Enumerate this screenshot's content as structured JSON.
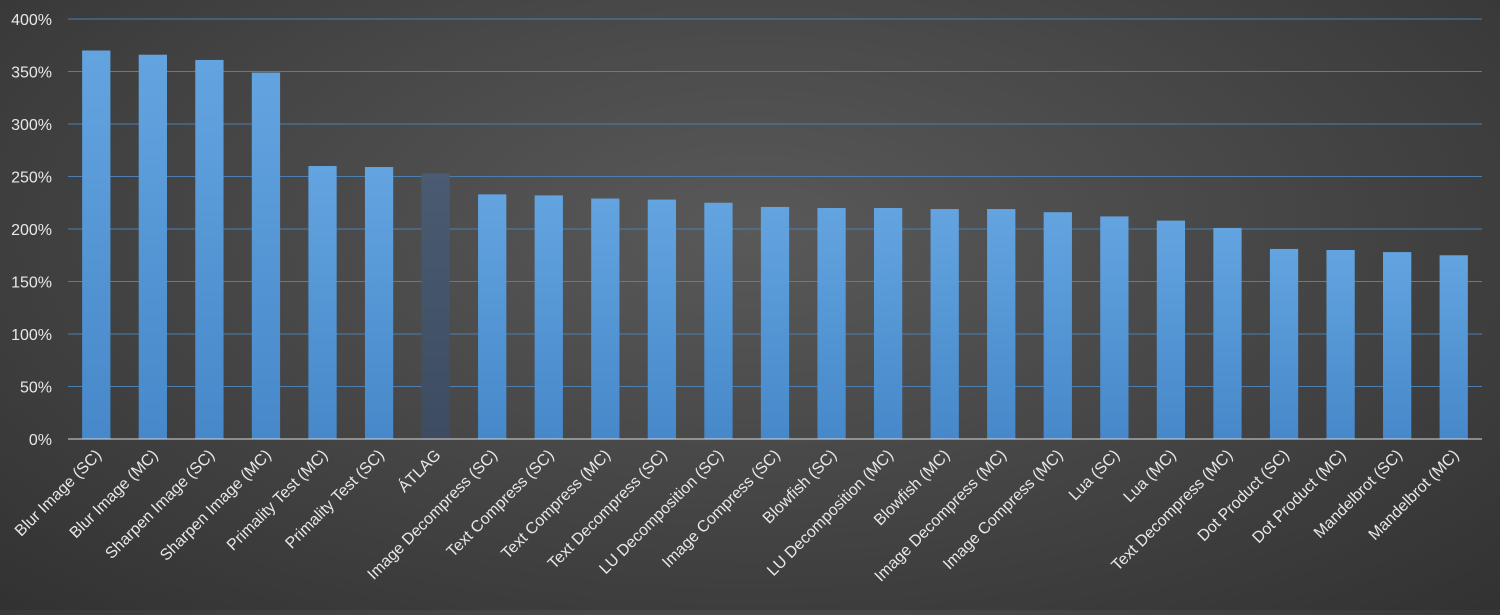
{
  "chart_data": {
    "type": "bar",
    "title": "",
    "xlabel": "",
    "ylabel": "",
    "ylim": [
      0,
      400
    ],
    "yticks": [
      "0%",
      "50%",
      "100%",
      "150%",
      "200%",
      "250%",
      "300%",
      "350%",
      "400%"
    ],
    "grid": true,
    "legend": "none",
    "categories": [
      "Blur Image (SC)",
      "Blur Image (MC)",
      "Sharpen Image (SC)",
      "Sharpen Image (MC)",
      "Primality Test (MC)",
      "Primality Test (SC)",
      "ÁTLAG",
      "Image Decompress (SC)",
      "Text Compress (SC)",
      "Text Compress (MC)",
      "Text Decompress (SC)",
      "LU Decomposition (SC)",
      "Image Compress (SC)",
      "Blowfish (SC)",
      "LU Decomposition (MC)",
      "Blowfish (MC)",
      "Image Decompress (MC)",
      "Image Compress (MC)",
      "Lua (SC)",
      "Lua (MC)",
      "Text Decompress (MC)",
      "Dot Product (SC)",
      "Dot Product (MC)",
      "Mandelbrot (SC)",
      "Mandelbrot (MC)"
    ],
    "values": [
      370,
      366,
      361,
      349,
      260,
      259,
      253,
      233,
      232,
      229,
      228,
      225,
      221,
      220,
      220,
      219,
      219,
      216,
      212,
      208,
      201,
      181,
      180,
      178,
      175
    ],
    "colors": {
      "bar": "#5b9bd5",
      "highlight": "#44546a",
      "grid": "#4a7fb0",
      "axis": "#d9d9d9",
      "text": "#e8e8e8"
    },
    "highlight_category": "ÁTLAG"
  }
}
